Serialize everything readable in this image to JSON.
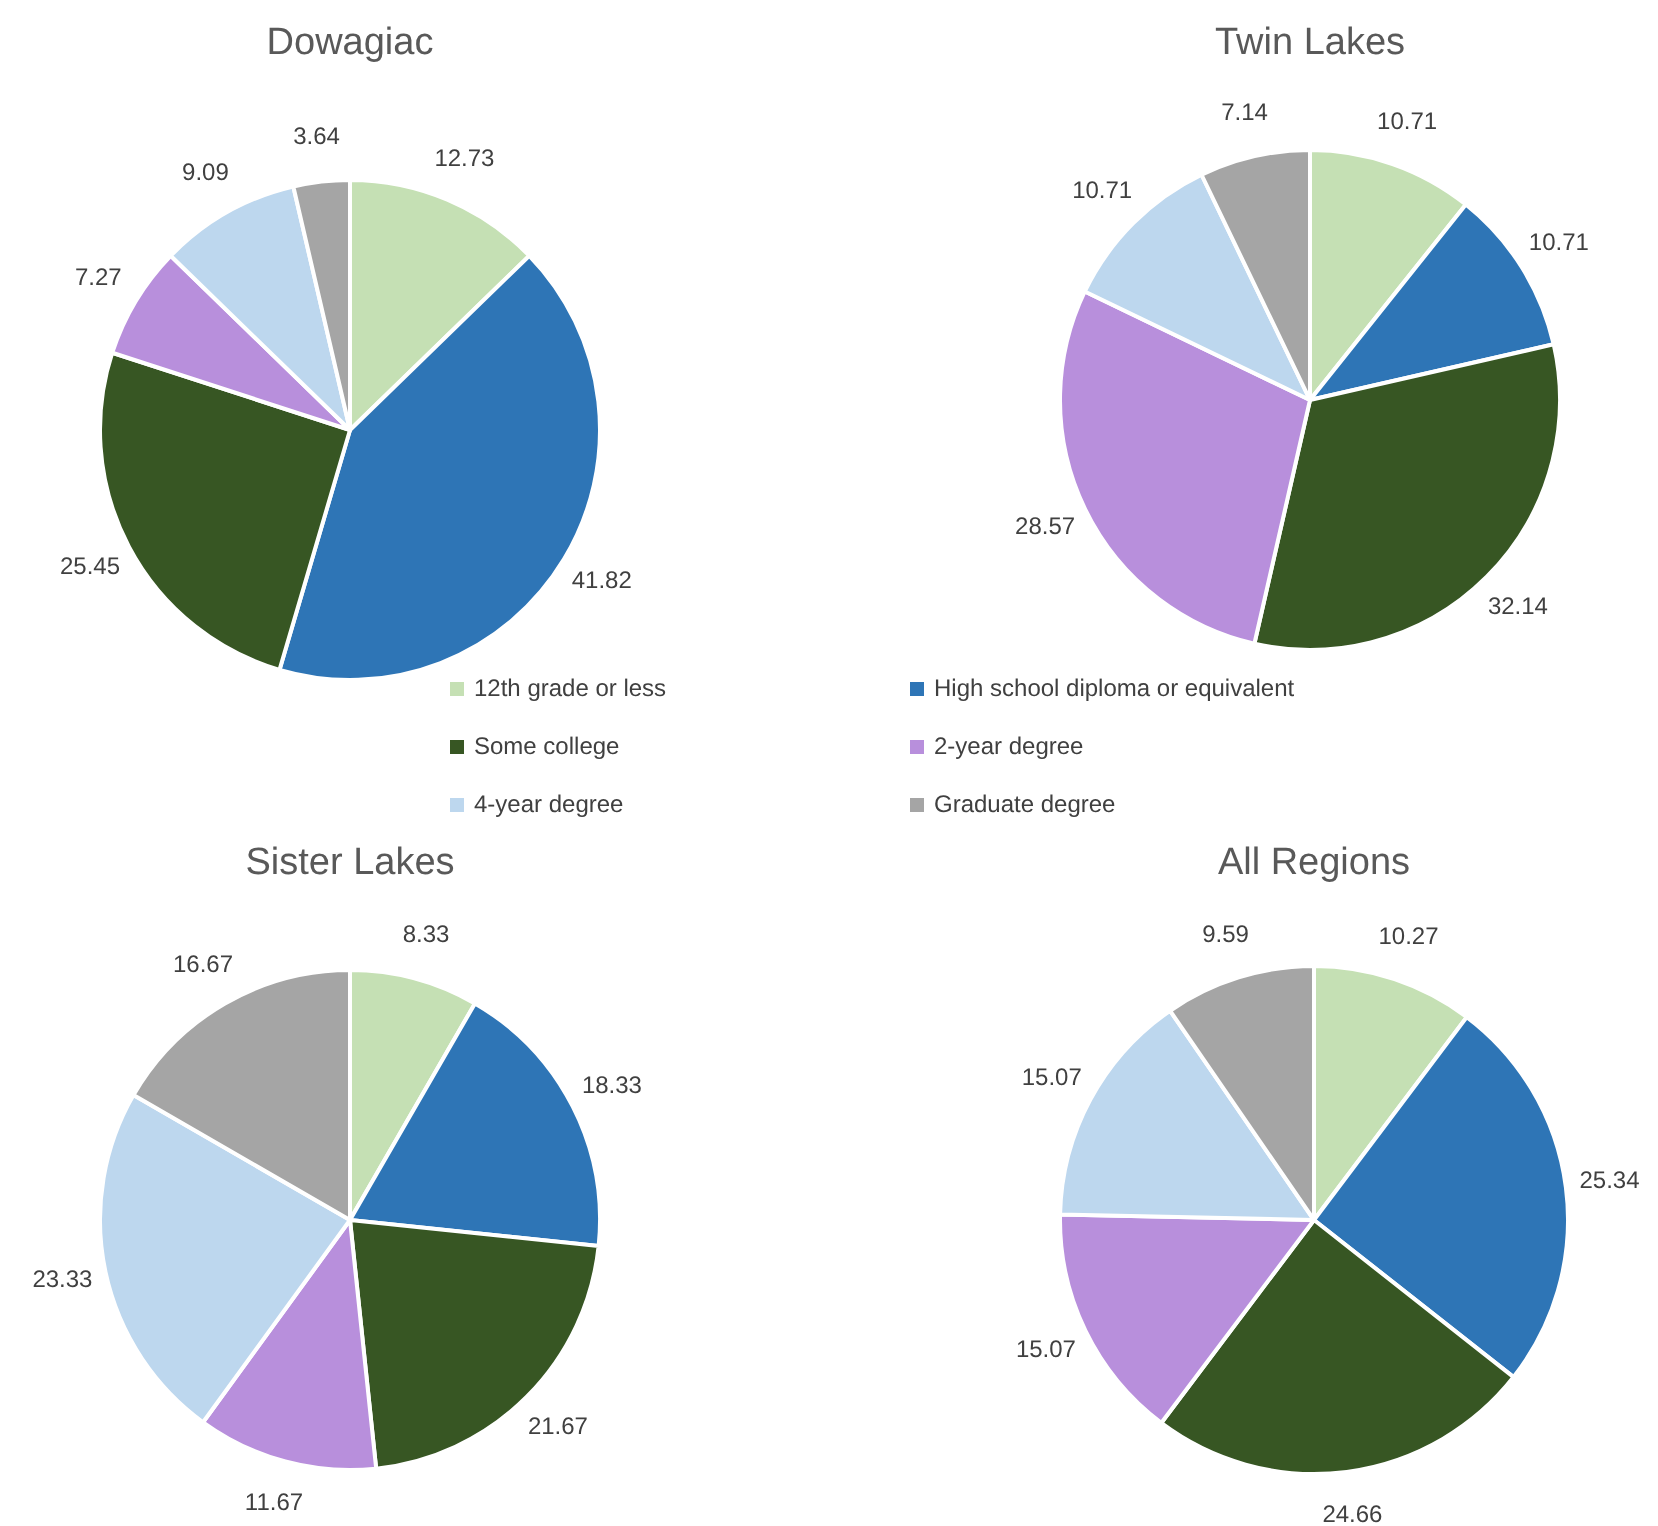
{
  "chart_data": [
    {
      "type": "pie",
      "title": "Dowagiac",
      "categories": [
        "12th grade or less",
        "High school diploma or equivalent",
        "Some college",
        "2-year degree",
        "4-year degree",
        "Graduate degree"
      ],
      "values": [
        12.73,
        41.82,
        25.45,
        7.27,
        9.09,
        3.64
      ],
      "colors": [
        "#c5e0b4",
        "#2e75b6",
        "#375623",
        "#b88fdc",
        "#bdd7ee",
        "#a5a5a5"
      ],
      "data_labels": true,
      "legend": "bottom"
    },
    {
      "type": "pie",
      "title": "Twin Lakes",
      "categories": [
        null,
        null,
        null,
        null,
        null,
        null
      ],
      "values": [
        10.71,
        10.71,
        32.14,
        28.57,
        10.71,
        7.14
      ],
      "colors": [
        "#c5e0b4",
        "#2e75b6",
        "#375623",
        "#b88fdc",
        "#bdd7ee",
        "#a5a5a5"
      ],
      "data_labels": true
    },
    {
      "type": "pie",
      "title": "Sister Lakes",
      "categories": [
        null,
        null,
        null,
        null,
        null,
        null
      ],
      "values": [
        8.33,
        18.33,
        21.67,
        11.67,
        23.33,
        16.67
      ],
      "colors": [
        "#c5e0b4",
        "#2e75b6",
        "#375623",
        "#b88fdc",
        "#bdd7ee",
        "#a5a5a5"
      ],
      "data_labels": true
    },
    {
      "type": "pie",
      "title": "All Regions",
      "categories": [
        null,
        null,
        null,
        null,
        null,
        null
      ],
      "values": [
        10.27,
        25.34,
        24.66,
        15.07,
        15.07,
        9.59
      ],
      "colors": [
        "#c5e0b4",
        "#2e75b6",
        "#375623",
        "#b88fdc",
        "#bdd7ee",
        "#a5a5a5"
      ],
      "data_labels": true
    }
  ]
}
